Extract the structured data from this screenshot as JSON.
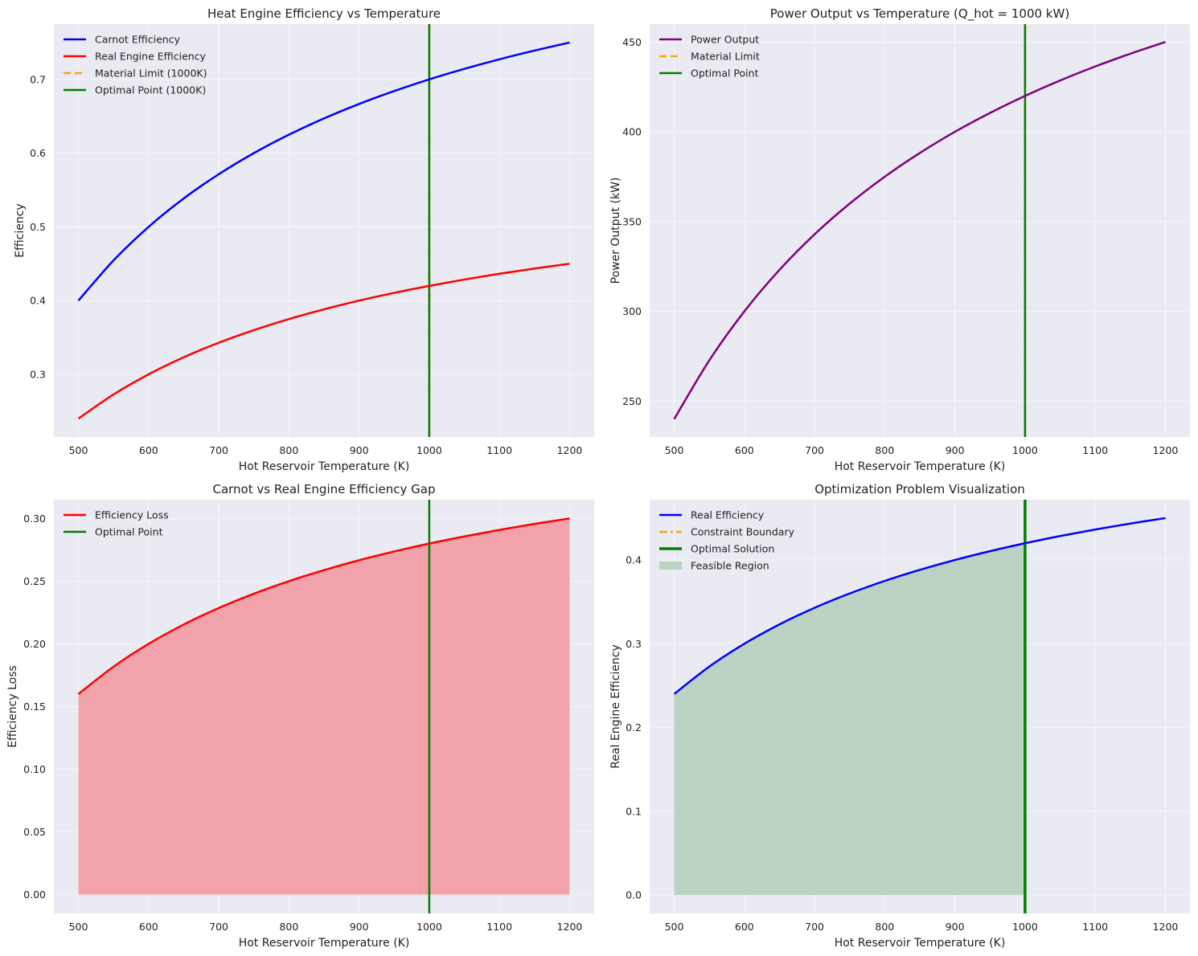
{
  "figure": {
    "background": "#ffffff",
    "axes_background": "#eaeaf2",
    "grid_color": "#ffffff"
  },
  "chart_data": [
    {
      "type": "line",
      "title": "Heat Engine Efficiency vs Temperature",
      "xlabel": "Hot Reservoir Temperature (K)",
      "ylabel": "Efficiency",
      "xlim": [
        465,
        1235
      ],
      "ylim": [
        0.215,
        0.775
      ],
      "xticks": [
        500,
        600,
        700,
        800,
        900,
        1000,
        1100,
        1200
      ],
      "xtick_labels": [
        "500",
        "600",
        "700",
        "800",
        "900",
        "1000",
        "1100",
        "1200"
      ],
      "yticks": [
        0.3,
        0.4,
        0.5,
        0.6,
        0.7
      ],
      "ytick_labels": [
        "0.3",
        "0.4",
        "0.5",
        "0.6",
        "0.7"
      ],
      "grid": true,
      "legend_position": "top-left",
      "x": [
        500,
        550,
        600,
        650,
        700,
        750,
        800,
        850,
        900,
        950,
        1000,
        1050,
        1100,
        1150,
        1200
      ],
      "series": [
        {
          "name": "Carnot Efficiency",
          "color": "#0000ff",
          "style": "solid",
          "values": [
            0.4,
            0.4545,
            0.5,
            0.5385,
            0.5714,
            0.6,
            0.625,
            0.6471,
            0.6667,
            0.6842,
            0.7,
            0.7143,
            0.7273,
            0.7391,
            0.75
          ]
        },
        {
          "name": "Real Engine Efficiency",
          "color": "#ff0000",
          "style": "solid",
          "values": [
            0.24,
            0.2727,
            0.3,
            0.3231,
            0.3429,
            0.36,
            0.375,
            0.3882,
            0.4,
            0.4105,
            0.42,
            0.4286,
            0.4364,
            0.4435,
            0.45
          ]
        }
      ],
      "vlines": [
        {
          "name": "Material Limit (1000K)",
          "x": 1000,
          "color": "#ffa500",
          "style": "dashed"
        },
        {
          "name": "Optimal Point (1000K)",
          "x": 1000,
          "color": "#008000",
          "style": "solid"
        }
      ],
      "legend": [
        {
          "label": "Carnot Efficiency",
          "color": "#0000ff",
          "kind": "line"
        },
        {
          "label": "Real Engine Efficiency",
          "color": "#ff0000",
          "kind": "line"
        },
        {
          "label": "Material Limit (1000K)",
          "color": "#ffa500",
          "kind": "dashed"
        },
        {
          "label": "Optimal Point (1000K)",
          "color": "#008000",
          "kind": "line"
        }
      ]
    },
    {
      "type": "line",
      "title": "Power Output vs Temperature (Q_hot = 1000 kW)",
      "xlabel": "Hot Reservoir Temperature (K)",
      "ylabel": "Power Output (kW)",
      "xlim": [
        465,
        1235
      ],
      "ylim": [
        230,
        460
      ],
      "xticks": [
        500,
        600,
        700,
        800,
        900,
        1000,
        1100,
        1200
      ],
      "xtick_labels": [
        "500",
        "600",
        "700",
        "800",
        "900",
        "1000",
        "1100",
        "1200"
      ],
      "yticks": [
        250,
        300,
        350,
        400,
        450
      ],
      "ytick_labels": [
        "250",
        "300",
        "350",
        "400",
        "450"
      ],
      "grid": true,
      "legend_position": "top-left",
      "x": [
        500,
        550,
        600,
        650,
        700,
        750,
        800,
        850,
        900,
        950,
        1000,
        1050,
        1100,
        1150,
        1200
      ],
      "series": [
        {
          "name": "Power Output",
          "color": "#800080",
          "style": "solid",
          "values": [
            240,
            272.7,
            300,
            323.1,
            342.9,
            360,
            375,
            388.2,
            400,
            410.5,
            420,
            428.6,
            436.4,
            443.5,
            450
          ]
        }
      ],
      "vlines": [
        {
          "name": "Material Limit",
          "x": 1000,
          "color": "#ffa500",
          "style": "dashed"
        },
        {
          "name": "Optimal Point",
          "x": 1000,
          "color": "#008000",
          "style": "solid"
        }
      ],
      "legend": [
        {
          "label": "Power Output",
          "color": "#800080",
          "kind": "line"
        },
        {
          "label": "Material Limit",
          "color": "#ffa500",
          "kind": "dashed"
        },
        {
          "label": "Optimal Point",
          "color": "#008000",
          "kind": "line"
        }
      ]
    },
    {
      "type": "area",
      "title": "Carnot vs Real Engine Efficiency Gap",
      "xlabel": "Hot Reservoir Temperature (K)",
      "ylabel": "Efficiency Loss",
      "xlim": [
        465,
        1235
      ],
      "ylim": [
        -0.015,
        0.315
      ],
      "xticks": [
        500,
        600,
        700,
        800,
        900,
        1000,
        1100,
        1200
      ],
      "xtick_labels": [
        "500",
        "600",
        "700",
        "800",
        "900",
        "1000",
        "1100",
        "1200"
      ],
      "yticks": [
        0.0,
        0.05,
        0.1,
        0.15,
        0.2,
        0.25,
        0.3
      ],
      "ytick_labels": [
        "0.00",
        "0.05",
        "0.10",
        "0.15",
        "0.20",
        "0.25",
        "0.30"
      ],
      "grid": true,
      "legend_position": "top-left",
      "x": [
        500,
        550,
        600,
        650,
        700,
        750,
        800,
        850,
        900,
        950,
        1000,
        1050,
        1100,
        1150,
        1200
      ],
      "series": [
        {
          "name": "Efficiency Loss",
          "color": "#ff0000",
          "style": "solid",
          "fill": "#f2a2aa",
          "fill_to_x": 1200,
          "values": [
            0.16,
            0.1818,
            0.2,
            0.2154,
            0.2286,
            0.24,
            0.25,
            0.2588,
            0.2667,
            0.2737,
            0.28,
            0.2857,
            0.2909,
            0.2957,
            0.3
          ]
        }
      ],
      "vlines": [
        {
          "name": "Optimal Point",
          "x": 1000,
          "color": "#008000",
          "style": "solid"
        }
      ],
      "legend": [
        {
          "label": "Efficiency Loss",
          "color": "#ff0000",
          "kind": "line"
        },
        {
          "label": "Optimal Point",
          "color": "#008000",
          "kind": "line"
        }
      ]
    },
    {
      "type": "area",
      "title": "Optimization Problem Visualization",
      "xlabel": "Hot Reservoir Temperature (K)",
      "ylabel": "Real Engine Efficiency",
      "xlim": [
        465,
        1235
      ],
      "ylim": [
        -0.022,
        0.472
      ],
      "xticks": [
        500,
        600,
        700,
        800,
        900,
        1000,
        1100,
        1200
      ],
      "xtick_labels": [
        "500",
        "600",
        "700",
        "800",
        "900",
        "1000",
        "1100",
        "1200"
      ],
      "yticks": [
        0.0,
        0.1,
        0.2,
        0.3,
        0.4
      ],
      "ytick_labels": [
        "0.0",
        "0.1",
        "0.2",
        "0.3",
        "0.4"
      ],
      "grid": true,
      "legend_position": "top-left",
      "x": [
        500,
        550,
        600,
        650,
        700,
        750,
        800,
        850,
        900,
        950,
        1000,
        1050,
        1100,
        1150,
        1200
      ],
      "series": [
        {
          "name": "Real Efficiency",
          "color": "#0000ff",
          "style": "solid",
          "fill": "#bad3c3",
          "fill_to_x": 1000,
          "values": [
            0.24,
            0.2727,
            0.3,
            0.3231,
            0.3429,
            0.36,
            0.375,
            0.3882,
            0.4,
            0.4105,
            0.42,
            0.4286,
            0.4364,
            0.4435,
            0.45
          ]
        }
      ],
      "vlines": [
        {
          "name": "Constraint Boundary",
          "x": 1000,
          "color": "#ffa500",
          "style": "dashdot"
        },
        {
          "name": "Optimal Solution",
          "x": 1000,
          "color": "#008000",
          "style": "solid-thick"
        }
      ],
      "legend": [
        {
          "label": "Real Efficiency",
          "color": "#0000ff",
          "kind": "line"
        },
        {
          "label": "Constraint Boundary",
          "color": "#ffa500",
          "kind": "dashdot"
        },
        {
          "label": "Optimal Solution",
          "color": "#008000",
          "kind": "thick"
        },
        {
          "label": "Feasible Region",
          "color": "#bad3c3",
          "kind": "patch"
        }
      ]
    }
  ]
}
